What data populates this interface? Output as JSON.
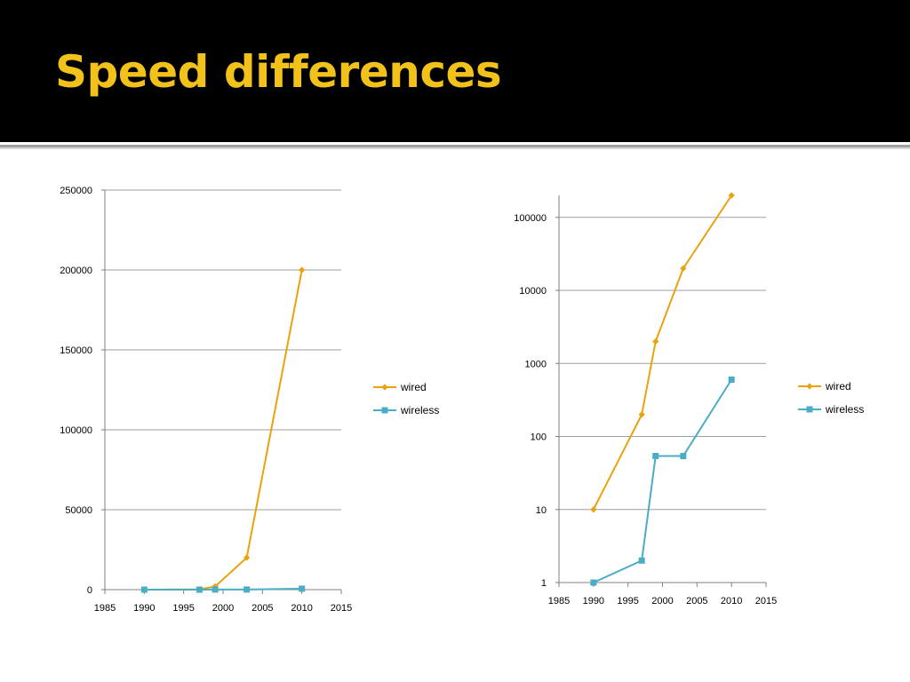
{
  "slide": {
    "title": "Speed differences"
  },
  "colors": {
    "wired": "#e8a30d",
    "wireless": "#4bacc6",
    "grid": "#9f9f9f",
    "axis": "#7f7f7f",
    "title": "#f2c21b"
  },
  "chart_data": [
    {
      "type": "scatter",
      "title": "",
      "xlabel": "",
      "ylabel": "",
      "xlim": [
        1985,
        2015
      ],
      "ylim": [
        0,
        250000
      ],
      "yscale": "linear",
      "x_ticks": [
        1985,
        1990,
        1995,
        2000,
        2005,
        2010,
        2015
      ],
      "y_ticks": [
        0,
        50000,
        100000,
        150000,
        200000,
        250000
      ],
      "grid": true,
      "legend": "right",
      "series": [
        {
          "name": "wired",
          "marker": "diamond",
          "x": [
            1990,
            1997,
            1999,
            2003,
            2010
          ],
          "y": [
            10,
            200,
            2000,
            20000,
            200000
          ]
        },
        {
          "name": "wireless",
          "marker": "square",
          "x": [
            1990,
            1997,
            1999,
            2003,
            2010
          ],
          "y": [
            1,
            2,
            54,
            54,
            600
          ]
        }
      ]
    },
    {
      "type": "scatter",
      "title": "",
      "xlabel": "",
      "ylabel": "",
      "xlim": [
        1985,
        2015
      ],
      "ylim": [
        1,
        200000
      ],
      "yscale": "log",
      "x_ticks": [
        1985,
        1990,
        1995,
        2000,
        2005,
        2010,
        2015
      ],
      "y_ticks": [
        1,
        10,
        100,
        1000,
        10000,
        100000
      ],
      "grid": true,
      "legend": "right",
      "series": [
        {
          "name": "wired",
          "marker": "diamond",
          "x": [
            1990,
            1997,
            1999,
            2003,
            2010
          ],
          "y": [
            10,
            200,
            2000,
            20000,
            200000
          ]
        },
        {
          "name": "wireless",
          "marker": "square",
          "x": [
            1990,
            1997,
            1999,
            2003,
            2010
          ],
          "y": [
            1,
            2,
            54,
            54,
            600
          ]
        }
      ]
    }
  ]
}
